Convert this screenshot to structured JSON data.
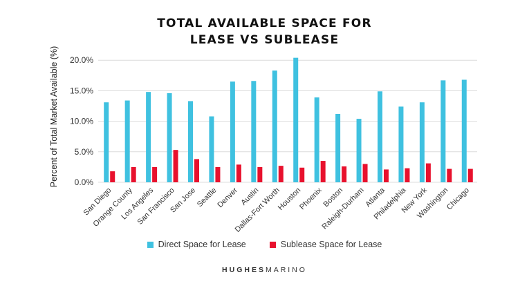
{
  "chart_data": {
    "type": "bar",
    "title_lines": [
      "TOTAL AVAILABLE SPACE FOR",
      "LEASE VS SUBLEASE"
    ],
    "ylabel": "Percent of Total Market Available (%)",
    "xlabel": "",
    "ylim": [
      0,
      22
    ],
    "yticks": [
      0,
      5,
      10,
      15,
      20
    ],
    "ytick_labels": [
      "0.0%",
      "5.0%",
      "10.0%",
      "15.0%",
      "20.0%"
    ],
    "grid": true,
    "legend_position": "bottom-center",
    "categories": [
      "San Diego",
      "Orange County",
      "Los Angeles",
      "San Francisco",
      "San Jose",
      "Seattle",
      "Denver",
      "Austin",
      "Dallas-Fort Worth",
      "Houston",
      "Phoenix",
      "Boston",
      "Raleigh-Durham",
      "Atlanta",
      "Philadelphia",
      "New York",
      "Washington",
      "Chicago"
    ],
    "series": [
      {
        "name": "Direct Space for Lease",
        "color": "#3fc1e0",
        "values": [
          13.1,
          13.4,
          14.8,
          14.6,
          13.3,
          10.8,
          16.5,
          16.6,
          18.3,
          20.4,
          13.9,
          11.2,
          10.4,
          14.9,
          12.4,
          13.1,
          16.7,
          16.8
        ]
      },
      {
        "name": "Sublease Space for Lease",
        "color": "#e8112d",
        "values": [
          1.8,
          2.5,
          2.5,
          5.3,
          3.8,
          2.5,
          2.9,
          2.5,
          2.7,
          2.4,
          3.5,
          2.6,
          3.0,
          2.1,
          2.3,
          3.1,
          2.2,
          2.2
        ]
      }
    ]
  },
  "brand": {
    "part1": "HUGHES",
    "part2": "MARINO"
  }
}
